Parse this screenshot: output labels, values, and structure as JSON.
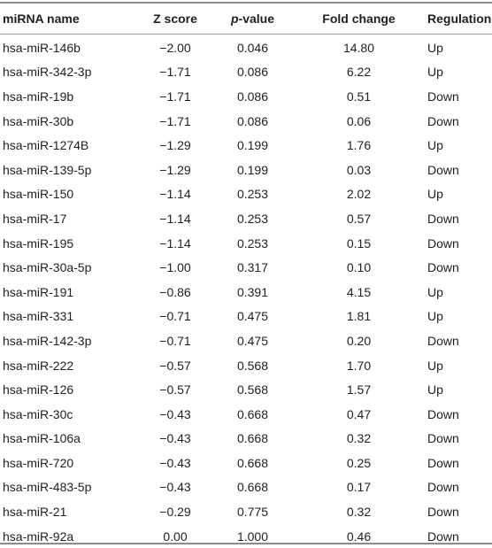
{
  "table": {
    "headers": {
      "name": "miRNA name",
      "z": "Z score",
      "p_italic": "p",
      "p_rest": "-value",
      "fc": "Fold change",
      "reg": "Regulation"
    },
    "rows": [
      {
        "name": "hsa-miR-146b",
        "z": "−2.00",
        "p": "0.046",
        "fc": "14.80",
        "reg": "Up"
      },
      {
        "name": "hsa-miR-342-3p",
        "z": "−1.71",
        "p": "0.086",
        "fc": "6.22",
        "reg": "Up"
      },
      {
        "name": "hsa-miR-19b",
        "z": "−1.71",
        "p": "0.086",
        "fc": "0.51",
        "reg": "Down"
      },
      {
        "name": "hsa-miR-30b",
        "z": "−1.71",
        "p": "0.086",
        "fc": "0.06",
        "reg": "Down"
      },
      {
        "name": "hsa-miR-1274B",
        "z": "−1.29",
        "p": "0.199",
        "fc": "1.76",
        "reg": "Up"
      },
      {
        "name": "hsa-miR-139-5p",
        "z": "−1.29",
        "p": "0.199",
        "fc": "0.03",
        "reg": "Down"
      },
      {
        "name": "hsa-miR-150",
        "z": "−1.14",
        "p": "0.253",
        "fc": "2.02",
        "reg": "Up"
      },
      {
        "name": "hsa-miR-17",
        "z": "−1.14",
        "p": "0.253",
        "fc": "0.57",
        "reg": "Down"
      },
      {
        "name": "hsa-miR-195",
        "z": "−1.14",
        "p": "0.253",
        "fc": "0.15",
        "reg": "Down"
      },
      {
        "name": "hsa-miR-30a-5p",
        "z": "−1.00",
        "p": "0.317",
        "fc": "0.10",
        "reg": "Down"
      },
      {
        "name": "hsa-miR-191",
        "z": "−0.86",
        "p": "0.391",
        "fc": "4.15",
        "reg": "Up"
      },
      {
        "name": "hsa-miR-331",
        "z": "−0.71",
        "p": "0.475",
        "fc": "1.81",
        "reg": "Up"
      },
      {
        "name": "hsa-miR-142-3p",
        "z": "−0.71",
        "p": "0.475",
        "fc": "0.20",
        "reg": "Down"
      },
      {
        "name": "hsa-miR-222",
        "z": "−0.57",
        "p": "0.568",
        "fc": "1.70",
        "reg": "Up"
      },
      {
        "name": "hsa-miR-126",
        "z": "−0.57",
        "p": "0.568",
        "fc": "1.57",
        "reg": "Up"
      },
      {
        "name": "hsa-miR-30c",
        "z": "−0.43",
        "p": "0.668",
        "fc": "0.47",
        "reg": "Down"
      },
      {
        "name": "hsa-miR-106a",
        "z": "−0.43",
        "p": "0.668",
        "fc": "0.32",
        "reg": "Down"
      },
      {
        "name": "hsa-miR-720",
        "z": "−0.43",
        "p": "0.668",
        "fc": "0.25",
        "reg": "Down"
      },
      {
        "name": "hsa-miR-483-5p",
        "z": "−0.43",
        "p": "0.668",
        "fc": "0.17",
        "reg": "Down"
      },
      {
        "name": "hsa-miR-21",
        "z": "−0.29",
        "p": "0.775",
        "fc": "0.32",
        "reg": "Down"
      },
      {
        "name": "hsa-miR-92a",
        "z": "0.00",
        "p": "1.000",
        "fc": "0.46",
        "reg": "Down"
      }
    ]
  }
}
